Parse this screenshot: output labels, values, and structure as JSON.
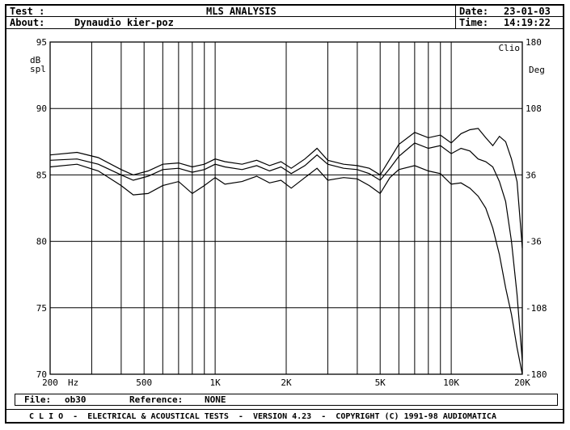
{
  "header": {
    "test_label": "Test :",
    "title": "MLS ANALYSIS",
    "about_label": "About:",
    "about_value": "Dynaudio kier-poz",
    "date_label": "Date:",
    "date_value": "23-01-03",
    "time_label": "Time:",
    "time_value": "14:19:22"
  },
  "footer": {
    "file_label": "File:",
    "file_value": "ob30",
    "reference_label": "Reference:",
    "reference_value": "NONE",
    "banner": "C L I O  -  ELECTRICAL & ACOUSTICAL TESTS  -  VERSION 4.23  -  COPYRIGHT (C) 1991-98 AUDIOMATICA"
  },
  "chart_data": {
    "type": "line",
    "xscale": "log",
    "xlim": [
      200,
      20000
    ],
    "ylim": [
      70,
      95
    ],
    "y2lim": [
      -180,
      180
    ],
    "left_unit": "dB\nspl",
    "right_unit": "Deg",
    "corner_label": "Clio",
    "x_ticks": [
      {
        "value": 200,
        "label": "200"
      },
      {
        "value": 500,
        "label": "500"
      },
      {
        "value": 1000,
        "label": "1K"
      },
      {
        "value": 2000,
        "label": "2K"
      },
      {
        "value": 5000,
        "label": "5K"
      },
      {
        "value": 10000,
        "label": "10K"
      },
      {
        "value": 20000,
        "label": "20K"
      }
    ],
    "x_unit": "Hz",
    "y_ticks": [
      95,
      90,
      85,
      80,
      75,
      70
    ],
    "y2_ticks": [
      "180",
      "108",
      "36",
      "-36",
      "-108",
      "-180"
    ],
    "grid": true,
    "series": [
      {
        "values": [
          [
            200,
            86.5
          ],
          [
            260,
            86.7
          ],
          [
            320,
            86.3
          ],
          [
            400,
            85.4
          ],
          [
            450,
            85.0
          ],
          [
            520,
            85.3
          ],
          [
            600,
            85.8
          ],
          [
            700,
            85.9
          ],
          [
            800,
            85.6
          ],
          [
            900,
            85.8
          ],
          [
            1000,
            86.2
          ],
          [
            1100,
            86.0
          ],
          [
            1300,
            85.8
          ],
          [
            1500,
            86.1
          ],
          [
            1700,
            85.7
          ],
          [
            1900,
            86.0
          ],
          [
            2100,
            85.5
          ],
          [
            2400,
            86.2
          ],
          [
            2700,
            87.0
          ],
          [
            3000,
            86.1
          ],
          [
            3500,
            85.8
          ],
          [
            4000,
            85.7
          ],
          [
            4500,
            85.5
          ],
          [
            5000,
            85.0
          ],
          [
            5500,
            86.2
          ],
          [
            6000,
            87.3
          ],
          [
            7000,
            88.2
          ],
          [
            8000,
            87.8
          ],
          [
            9000,
            88.0
          ],
          [
            10000,
            87.4
          ],
          [
            11000,
            88.1
          ],
          [
            12000,
            88.4
          ],
          [
            13000,
            88.5
          ],
          [
            14000,
            87.8
          ],
          [
            15000,
            87.2
          ],
          [
            16000,
            87.9
          ],
          [
            17000,
            87.5
          ],
          [
            18000,
            86.2
          ],
          [
            19000,
            84.5
          ],
          [
            20000,
            79.5
          ]
        ]
      },
      {
        "values": [
          [
            200,
            86.1
          ],
          [
            260,
            86.2
          ],
          [
            320,
            85.8
          ],
          [
            400,
            85.0
          ],
          [
            450,
            84.6
          ],
          [
            520,
            84.9
          ],
          [
            600,
            85.4
          ],
          [
            700,
            85.5
          ],
          [
            800,
            85.2
          ],
          [
            900,
            85.4
          ],
          [
            1000,
            85.8
          ],
          [
            1100,
            85.6
          ],
          [
            1300,
            85.4
          ],
          [
            1500,
            85.7
          ],
          [
            1700,
            85.3
          ],
          [
            1900,
            85.6
          ],
          [
            2100,
            85.1
          ],
          [
            2400,
            85.7
          ],
          [
            2700,
            86.5
          ],
          [
            3000,
            85.8
          ],
          [
            3500,
            85.5
          ],
          [
            4000,
            85.4
          ],
          [
            4500,
            85.1
          ],
          [
            5000,
            84.6
          ],
          [
            5500,
            85.5
          ],
          [
            6000,
            86.4
          ],
          [
            7000,
            87.4
          ],
          [
            8000,
            87.0
          ],
          [
            9000,
            87.2
          ],
          [
            10000,
            86.6
          ],
          [
            11000,
            87.0
          ],
          [
            12000,
            86.8
          ],
          [
            13000,
            86.2
          ],
          [
            14000,
            86.0
          ],
          [
            15000,
            85.6
          ],
          [
            16000,
            84.5
          ],
          [
            17000,
            83.0
          ],
          [
            18000,
            80.0
          ],
          [
            19000,
            76.0
          ],
          [
            20000,
            71.0
          ]
        ]
      },
      {
        "values": [
          [
            200,
            85.6
          ],
          [
            260,
            85.8
          ],
          [
            320,
            85.3
          ],
          [
            400,
            84.2
          ],
          [
            450,
            83.5
          ],
          [
            520,
            83.6
          ],
          [
            600,
            84.2
          ],
          [
            700,
            84.5
          ],
          [
            800,
            83.6
          ],
          [
            900,
            84.2
          ],
          [
            1000,
            84.8
          ],
          [
            1100,
            84.3
          ],
          [
            1300,
            84.5
          ],
          [
            1500,
            84.9
          ],
          [
            1700,
            84.4
          ],
          [
            1900,
            84.6
          ],
          [
            2100,
            84.0
          ],
          [
            2400,
            84.8
          ],
          [
            2700,
            85.5
          ],
          [
            3000,
            84.6
          ],
          [
            3500,
            84.8
          ],
          [
            4000,
            84.7
          ],
          [
            4500,
            84.2
          ],
          [
            5000,
            83.6
          ],
          [
            5500,
            84.8
          ],
          [
            6000,
            85.4
          ],
          [
            7000,
            85.7
          ],
          [
            8000,
            85.3
          ],
          [
            9000,
            85.1
          ],
          [
            10000,
            84.3
          ],
          [
            11000,
            84.4
          ],
          [
            12000,
            84.0
          ],
          [
            13000,
            83.4
          ],
          [
            14000,
            82.5
          ],
          [
            15000,
            81.0
          ],
          [
            16000,
            79.0
          ],
          [
            17000,
            76.5
          ],
          [
            18000,
            74.5
          ],
          [
            19000,
            72.0
          ],
          [
            20000,
            70.0
          ]
        ]
      }
    ]
  }
}
